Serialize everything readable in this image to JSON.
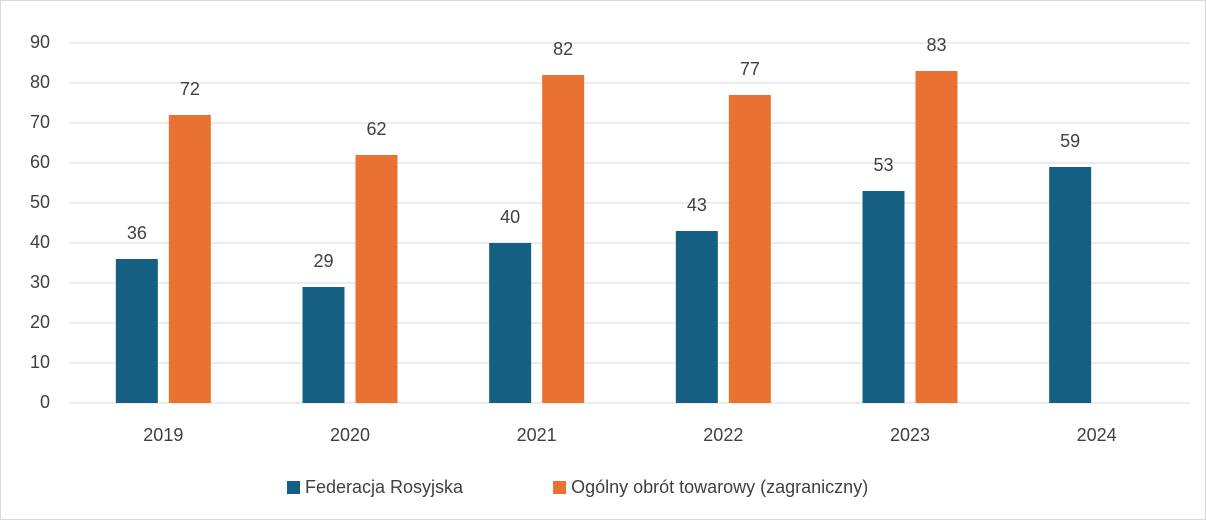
{
  "chart_data": {
    "type": "bar",
    "categories": [
      "2019",
      "2020",
      "2021",
      "2022",
      "2023",
      "2024"
    ],
    "series": [
      {
        "name": "Federacja Rosyjska",
        "color": "#156082",
        "values": [
          36,
          29,
          40,
          43,
          53,
          59
        ]
      },
      {
        "name": "Ogólny obrót towarowy (zagraniczny)",
        "color": "#e97132",
        "values": [
          72,
          62,
          82,
          77,
          83,
          null
        ]
      }
    ],
    "ylim": [
      0,
      90
    ],
    "yticks": [
      0,
      10,
      20,
      30,
      40,
      50,
      60,
      70,
      80,
      90
    ],
    "grid": true,
    "legend": "bottom"
  }
}
